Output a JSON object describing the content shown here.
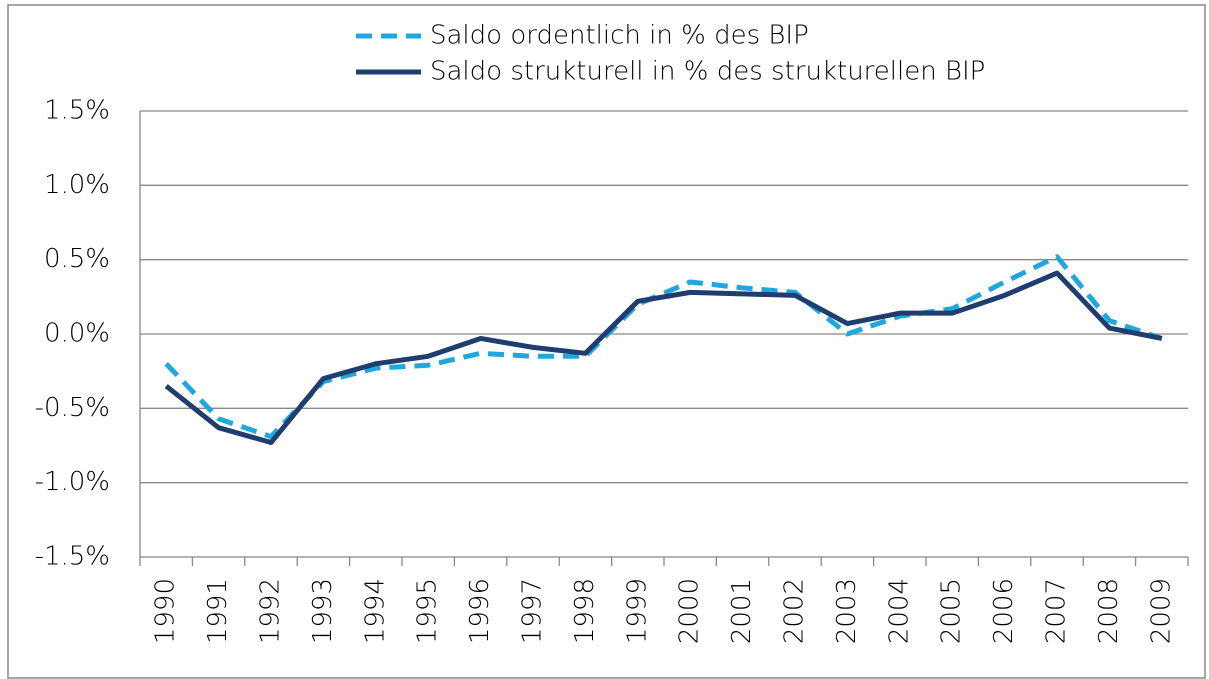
{
  "chart_data": {
    "type": "line",
    "categories": [
      "1990",
      "1991",
      "1992",
      "1993",
      "1994",
      "1995",
      "1996",
      "1997",
      "1998",
      "1999",
      "2000",
      "2001",
      "2002",
      "2003",
      "2004",
      "2005",
      "2006",
      "2007",
      "2008",
      "2009"
    ],
    "series": [
      {
        "name": "Saldo ordentlich in % des BIP",
        "color": "#1fa8e0",
        "style": "dashed",
        "values": [
          -0.2,
          -0.57,
          -0.69,
          -0.32,
          -0.23,
          -0.21,
          -0.13,
          -0.15,
          -0.15,
          0.2,
          0.35,
          0.31,
          0.28,
          0.0,
          0.12,
          0.17,
          0.35,
          0.52,
          0.09,
          -0.03
        ]
      },
      {
        "name": "Saldo strukturell in % des strukturellen BIP",
        "color": "#1f3d6e",
        "style": "solid",
        "values": [
          -0.35,
          -0.63,
          -0.73,
          -0.3,
          -0.2,
          -0.15,
          -0.03,
          -0.09,
          -0.13,
          0.22,
          0.28,
          0.27,
          0.26,
          0.07,
          0.14,
          0.14,
          0.26,
          0.41,
          0.04,
          -0.03
        ]
      }
    ],
    "ylim": [
      -1.5,
      1.5
    ],
    "yticks": [
      {
        "value": -1.5,
        "label": "-1.5%"
      },
      {
        "value": -1.0,
        "label": "-1.0%"
      },
      {
        "value": -0.5,
        "label": "-0.5%"
      },
      {
        "value": 0.0,
        "label": "0.0%"
      },
      {
        "value": 0.5,
        "label": "0.5%"
      },
      {
        "value": 1.0,
        "label": "1.0%"
      },
      {
        "value": 1.5,
        "label": "1.5%"
      }
    ],
    "grid": true,
    "legend": "top"
  }
}
